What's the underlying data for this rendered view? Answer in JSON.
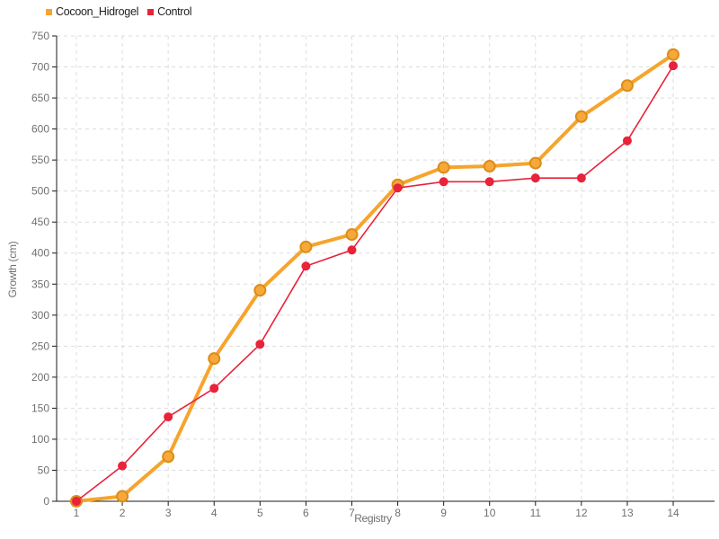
{
  "chart_data": {
    "type": "line",
    "xlabel": "Registry",
    "ylabel": "Growth (cm)",
    "categories": [
      1,
      2,
      3,
      4,
      5,
      6,
      7,
      8,
      9,
      10,
      11,
      12,
      13,
      14
    ],
    "series": [
      {
        "name": "Cocoon_Hidrogel",
        "color": "#F7A42C",
        "marker_fill": "#F7A83B",
        "marker_stroke": "#DB8E17",
        "values": [
          0,
          8,
          72,
          230,
          340,
          410,
          430,
          510,
          538,
          540,
          545,
          620,
          670,
          720
        ]
      },
      {
        "name": "Control",
        "color": "#E8233A",
        "marker_fill": "#E8233A",
        "marker_stroke": "#E8233A",
        "values": [
          0,
          57,
          136,
          182,
          253,
          379,
          405,
          505,
          515,
          515,
          521,
          521,
          581,
          702
        ]
      }
    ],
    "ylim": [
      0,
      750
    ],
    "ytick_step": 50,
    "grid": "dashed",
    "legend_position": "top-left",
    "colors": {
      "grid": "#dcdcdc",
      "axis": "#1a1a1a",
      "tick_label": "#707070",
      "background": "#ffffff"
    }
  }
}
